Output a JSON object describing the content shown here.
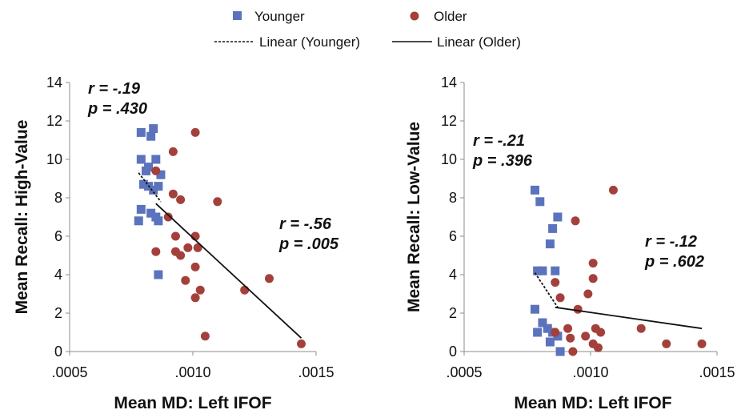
{
  "legend": {
    "younger": "Younger",
    "older": "Older",
    "linear_younger": "Linear (Younger)",
    "linear_older": "Linear (Older)"
  },
  "colors": {
    "younger": "#5b73bd",
    "older": "#a4403c",
    "line": "#111111"
  },
  "chart_data": [
    {
      "type": "scatter",
      "xlabel": "Mean MD: Left IFOF",
      "ylabel": "Mean Recall: High-Value",
      "xlim": [
        0.0005,
        0.0015
      ],
      "ylim": [
        0,
        14
      ],
      "xticks": [
        0.0005,
        0.001,
        0.0015
      ],
      "xtick_labels": [
        ".0005",
        ".0010",
        ".0015"
      ],
      "yticks": [
        0,
        2,
        4,
        6,
        8,
        10,
        12,
        14
      ],
      "ytick_labels": [
        "0",
        "2",
        "4",
        "6",
        "8",
        "10",
        "12",
        "14"
      ],
      "series": [
        {
          "name": "Younger",
          "marker": "square",
          "points": [
            [
              0.00079,
              11.4
            ],
            [
              0.00084,
              11.6
            ],
            [
              0.00083,
              11.2
            ],
            [
              0.00079,
              10.0
            ],
            [
              0.00085,
              10.0
            ],
            [
              0.00082,
              9.6
            ],
            [
              0.00081,
              9.4
            ],
            [
              0.00087,
              9.2
            ],
            [
              0.0008,
              8.7
            ],
            [
              0.00082,
              8.6
            ],
            [
              0.00086,
              8.6
            ],
            [
              0.00084,
              8.4
            ],
            [
              0.00083,
              7.2
            ],
            [
              0.00079,
              7.4
            ],
            [
              0.00085,
              7.0
            ],
            [
              0.00078,
              6.8
            ],
            [
              0.00086,
              6.8
            ],
            [
              0.00086,
              4.0
            ]
          ]
        },
        {
          "name": "Older",
          "marker": "circle",
          "points": [
            [
              0.00101,
              11.4
            ],
            [
              0.00092,
              10.4
            ],
            [
              0.00085,
              9.4
            ],
            [
              0.00092,
              8.2
            ],
            [
              0.00095,
              7.9
            ],
            [
              0.0011,
              7.8
            ],
            [
              0.0009,
              7.0
            ],
            [
              0.00093,
              6.0
            ],
            [
              0.00101,
              6.0
            ],
            [
              0.00098,
              5.4
            ],
            [
              0.00102,
              5.4
            ],
            [
              0.00085,
              5.2
            ],
            [
              0.00093,
              5.2
            ],
            [
              0.00095,
              5.0
            ],
            [
              0.00101,
              4.4
            ],
            [
              0.00097,
              3.7
            ],
            [
              0.00131,
              3.8
            ],
            [
              0.00103,
              3.2
            ],
            [
              0.00121,
              3.2
            ],
            [
              0.00101,
              2.8
            ],
            [
              0.00105,
              0.8
            ],
            [
              0.00144,
              0.4
            ]
          ]
        }
      ],
      "trendlines": [
        {
          "name": "Linear (Younger)",
          "style": "dashed",
          "x": [
            0.00078,
            0.00087
          ],
          "y": [
            9.3,
            7.8
          ]
        },
        {
          "name": "Linear (Older)",
          "style": "solid",
          "x": [
            0.00085,
            0.00144
          ],
          "y": [
            7.7,
            0.7
          ]
        }
      ],
      "annotations": [
        {
          "r": "r = -.19",
          "p": "p = .430",
          "group": "Younger"
        },
        {
          "r": "r = -.56",
          "p": "p = .005",
          "group": "Older"
        }
      ]
    },
    {
      "type": "scatter",
      "xlabel": "Mean MD: Left IFOF",
      "ylabel": "Mean Recall: Low-Value",
      "xlim": [
        0.0005,
        0.0015
      ],
      "ylim": [
        0,
        14
      ],
      "xticks": [
        0.0005,
        0.001,
        0.0015
      ],
      "xtick_labels": [
        ".0005",
        ".0010",
        ".0015"
      ],
      "yticks": [
        0,
        2,
        4,
        6,
        8,
        10,
        12,
        14
      ],
      "ytick_labels": [
        "0",
        "2",
        "4",
        "6",
        "8",
        "10",
        "12",
        "14"
      ],
      "series": [
        {
          "name": "Younger",
          "marker": "square",
          "points": [
            [
              0.00078,
              8.4
            ],
            [
              0.0008,
              7.8
            ],
            [
              0.00087,
              7.0
            ],
            [
              0.00085,
              6.4
            ],
            [
              0.00084,
              5.6
            ],
            [
              0.00079,
              4.2
            ],
            [
              0.00081,
              4.2
            ],
            [
              0.00086,
              4.2
            ],
            [
              0.00078,
              2.2
            ],
            [
              0.00081,
              1.5
            ],
            [
              0.00079,
              1.0
            ],
            [
              0.00083,
              1.2
            ],
            [
              0.00085,
              1.0
            ],
            [
              0.00087,
              0.8
            ],
            [
              0.00084,
              0.5
            ],
            [
              0.00088,
              0.0
            ]
          ]
        },
        {
          "name": "Older",
          "marker": "circle",
          "points": [
            [
              0.00109,
              8.4
            ],
            [
              0.00094,
              6.8
            ],
            [
              0.00101,
              4.6
            ],
            [
              0.00086,
              3.6
            ],
            [
              0.00101,
              3.8
            ],
            [
              0.00099,
              3.0
            ],
            [
              0.00088,
              2.8
            ],
            [
              0.00095,
              2.2
            ],
            [
              0.0012,
              1.2
            ],
            [
              0.00091,
              1.2
            ],
            [
              0.00102,
              1.2
            ],
            [
              0.00104,
              1.0
            ],
            [
              0.00098,
              0.8
            ],
            [
              0.00086,
              1.0
            ],
            [
              0.00092,
              0.7
            ],
            [
              0.0013,
              0.4
            ],
            [
              0.00144,
              0.4
            ],
            [
              0.00101,
              0.4
            ],
            [
              0.00103,
              0.2
            ],
            [
              0.00093,
              0.0
            ]
          ]
        }
      ],
      "trendlines": [
        {
          "name": "Linear (Younger)",
          "style": "dashed",
          "x": [
            0.00078,
            0.00087
          ],
          "y": [
            4.1,
            2.3
          ]
        },
        {
          "name": "Linear (Older)",
          "style": "solid",
          "x": [
            0.00086,
            0.00144
          ],
          "y": [
            2.3,
            1.2
          ]
        }
      ],
      "annotations": [
        {
          "r": "r = -.21",
          "p": "p = .396",
          "group": "Younger"
        },
        {
          "r": "r = -.12",
          "p": "p = .602",
          "group": "Older"
        }
      ]
    }
  ]
}
